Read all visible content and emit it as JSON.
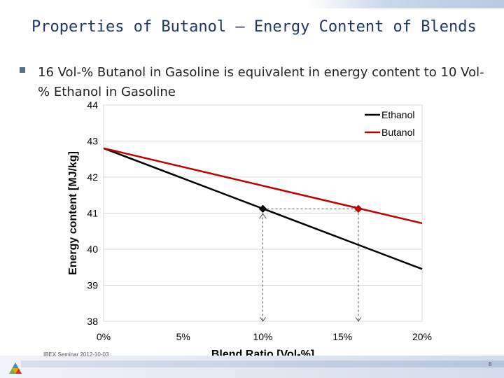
{
  "slide": {
    "title": "Properties of Butanol – Energy Content of Blends",
    "bullet": "16 Vol-% Butanol in Gasoline is equivalent in energy content to 10 Vol-% Ethanol in Gasoline",
    "footer": "IBEX Seminar 2012-10-03",
    "page_number": "8"
  },
  "colors": {
    "ethanol": "#000000",
    "butanol": "#c00000",
    "title": "#1f3864",
    "grid": "#d9d9d9"
  },
  "chart_data": {
    "type": "line",
    "title": "",
    "xlabel": "Blend Ratio [Vol-%]",
    "ylabel": "Energy content [MJ/kg]",
    "xlim": [
      0,
      20
    ],
    "ylim": [
      38,
      44
    ],
    "x_ticks": [
      0,
      5,
      10,
      15,
      20
    ],
    "x_tick_labels": [
      "0%",
      "5%",
      "10%",
      "15%",
      "20%"
    ],
    "y_ticks": [
      38,
      39,
      40,
      41,
      42,
      43,
      44
    ],
    "y_tick_labels": [
      "38",
      "39",
      "40",
      "41",
      "42",
      "43",
      "44"
    ],
    "grid": "horizontal",
    "legend": "top-right",
    "series": [
      {
        "name": "Ethanol",
        "color": "#000000",
        "x": [
          0,
          20
        ],
        "y": [
          42.8,
          39.45
        ]
      },
      {
        "name": "Butanol",
        "color": "#c00000",
        "x": [
          0,
          20
        ],
        "y": [
          42.8,
          40.72
        ]
      }
    ],
    "markers": [
      {
        "series": "Ethanol",
        "x": 10,
        "y": 41.12,
        "color": "#000000"
      },
      {
        "series": "Butanol",
        "x": 16,
        "y": 41.12,
        "color": "#c00000"
      }
    ],
    "guides": [
      {
        "from": [
          10,
          41.12
        ],
        "to": [
          10,
          38
        ]
      },
      {
        "from": [
          10,
          41.12
        ],
        "to": [
          16,
          41.12
        ]
      },
      {
        "from": [
          16,
          41.12
        ],
        "to": [
          16,
          38
        ]
      }
    ]
  }
}
